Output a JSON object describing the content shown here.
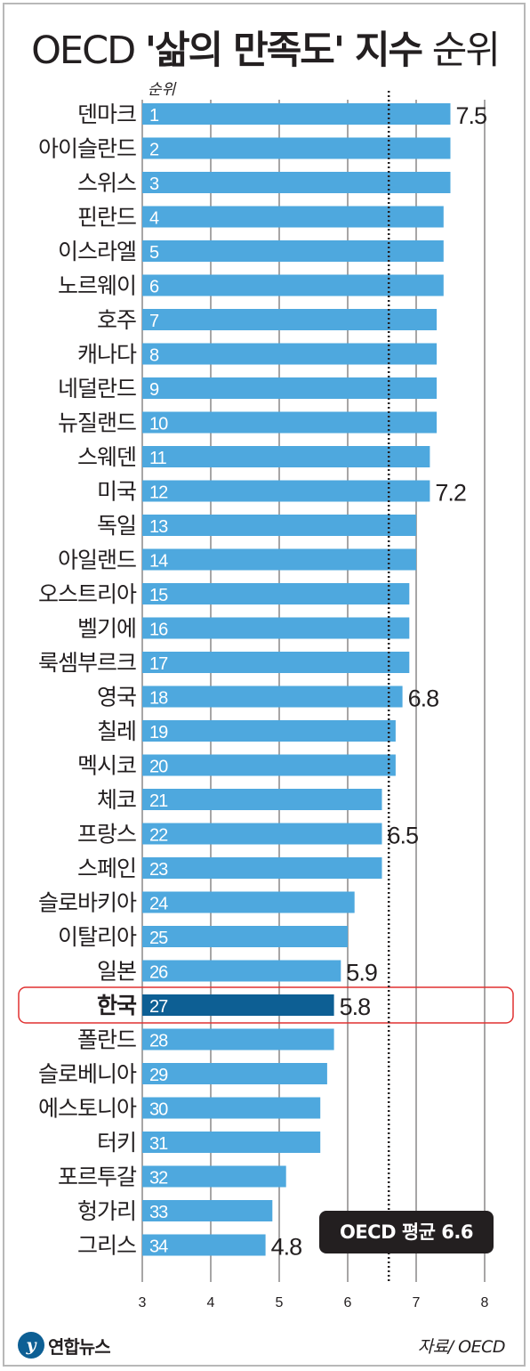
{
  "title": {
    "prefix": "OECD",
    "bold": "'삶의 만족도' 지수",
    "suffix": "순위"
  },
  "rank_header": "순위",
  "average": {
    "label": "OECD 평균 6.6",
    "value": 6.6
  },
  "highlight_country": "한국",
  "footer": {
    "logo_mark": "y",
    "logo_text": "연합뉴스",
    "source": "자료/ OECD"
  },
  "colors": {
    "bar": "#4ea8de",
    "bar_highlight": "#0d5f94",
    "highlight_border": "#e03131",
    "grid": "#231f20",
    "text": "#231f20"
  },
  "chart_data": {
    "type": "bar",
    "orientation": "horizontal",
    "xlim": [
      3,
      8
    ],
    "xticks": [
      3,
      4,
      5,
      6,
      7,
      8
    ],
    "grid": true,
    "categories": [
      "덴마크",
      "아이슬란드",
      "스위스",
      "핀란드",
      "이스라엘",
      "노르웨이",
      "호주",
      "캐나다",
      "네덜란드",
      "뉴질랜드",
      "스웨덴",
      "미국",
      "독일",
      "아일랜드",
      "오스트리아",
      "벨기에",
      "룩셈부르크",
      "영국",
      "칠레",
      "멕시코",
      "체코",
      "프랑스",
      "스페인",
      "슬로바키아",
      "이탈리아",
      "일본",
      "한국",
      "폴란드",
      "슬로베니아",
      "에스토니아",
      "터키",
      "포르투갈",
      "헝가리",
      "그리스"
    ],
    "ranks": [
      "1",
      "2",
      "3",
      "4",
      "5",
      "6",
      "7",
      "8",
      "9",
      "10",
      "11",
      "12",
      "13",
      "14",
      "15",
      "16",
      "17",
      "18",
      "19",
      "20",
      "21",
      "22",
      "23",
      "24",
      "25",
      "26",
      "27",
      "28",
      "29",
      "30",
      "31",
      "32",
      "33",
      "34"
    ],
    "values": [
      7.5,
      7.5,
      7.5,
      7.4,
      7.4,
      7.4,
      7.3,
      7.3,
      7.3,
      7.3,
      7.2,
      7.2,
      7.0,
      7.0,
      6.9,
      6.9,
      6.9,
      6.8,
      6.7,
      6.7,
      6.5,
      6.5,
      6.5,
      6.1,
      6.0,
      5.9,
      5.8,
      5.8,
      5.7,
      5.6,
      5.6,
      5.1,
      4.9,
      4.8
    ],
    "value_labels": [
      "7.5",
      "",
      "",
      "",
      "",
      "",
      "",
      "",
      "",
      "",
      "",
      "7.2",
      "",
      "",
      "",
      "",
      "",
      "6.8",
      "",
      "",
      "",
      "6.5",
      "",
      "",
      "",
      "5.9",
      "5.8",
      "",
      "",
      "",
      "",
      "",
      "",
      "4.8"
    ]
  }
}
